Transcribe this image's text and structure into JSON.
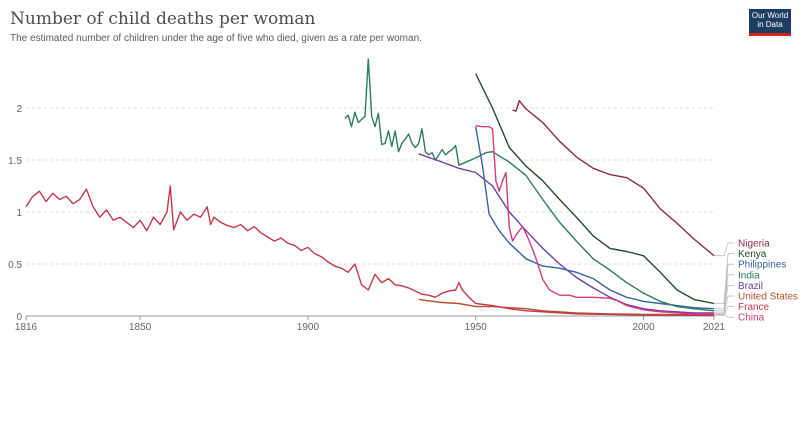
{
  "header": {
    "title": "Number of child deaths per woman",
    "subtitle": "The estimated number of children under the age of five who died, given as a rate per woman.",
    "logo_line1": "Our World",
    "logo_line2": "in Data"
  },
  "chart_data": {
    "type": "line",
    "title": "Number of child deaths per woman",
    "subtitle": "The estimated number of children under the age of five who died, given as a rate per woman.",
    "xlabel": "",
    "ylabel": "",
    "xlim": [
      1816,
      2021
    ],
    "ylim": [
      0,
      2.5
    ],
    "x_ticks": [
      1816,
      1850,
      1900,
      1950,
      2000,
      2021
    ],
    "y_ticks": [
      0,
      0.5,
      1,
      1.5,
      2
    ],
    "grid": true,
    "legend": "right",
    "series": [
      {
        "name": "Nigeria",
        "color": "#8b2c44",
        "x": [
          1961,
          1962,
          1963,
          1964,
          1965,
          1970,
          1975,
          1980,
          1985,
          1990,
          1995,
          2000,
          2005,
          2010,
          2015,
          2021
        ],
        "y": [
          1.98,
          1.97,
          2.07,
          2.03,
          1.99,
          1.86,
          1.68,
          1.53,
          1.42,
          1.36,
          1.33,
          1.23,
          1.03,
          0.89,
          0.74,
          0.58
        ]
      },
      {
        "name": "Kenya",
        "color": "#1f4d2e",
        "x": [
          1950,
          1955,
          1960,
          1965,
          1970,
          1975,
          1980,
          1985,
          1990,
          1995,
          2000,
          2005,
          2010,
          2015,
          2021
        ],
        "y": [
          2.33,
          2.0,
          1.62,
          1.44,
          1.3,
          1.12,
          0.95,
          0.77,
          0.65,
          0.62,
          0.58,
          0.42,
          0.25,
          0.16,
          0.12
        ]
      },
      {
        "name": "Philippines",
        "color": "#3465a4",
        "x": [
          1950,
          1952,
          1954,
          1957,
          1960,
          1965,
          1970,
          1975,
          1980,
          1985,
          1990,
          1995,
          2000,
          2005,
          2010,
          2015,
          2021
        ],
        "y": [
          1.82,
          1.45,
          0.98,
          0.82,
          0.7,
          0.55,
          0.48,
          0.46,
          0.42,
          0.36,
          0.25,
          0.18,
          0.14,
          0.12,
          0.1,
          0.08,
          0.07
        ]
      },
      {
        "name": "India",
        "color": "#2e7d5b",
        "x": [
          1911,
          1912,
          1913,
          1914,
          1915,
          1916,
          1917,
          1918,
          1919,
          1920,
          1921,
          1922,
          1923,
          1924,
          1925,
          1926,
          1927,
          1928,
          1929,
          1930,
          1931,
          1932,
          1933,
          1934,
          1935,
          1936,
          1937,
          1938,
          1939,
          1940,
          1941,
          1942,
          1943,
          1944,
          1945,
          1950,
          1953,
          1955,
          1960,
          1965,
          1970,
          1975,
          1980,
          1985,
          1990,
          1995,
          2000,
          2005,
          2010,
          2015,
          2021
        ],
        "y": [
          1.9,
          1.93,
          1.82,
          1.96,
          1.86,
          1.89,
          1.92,
          2.47,
          1.92,
          1.82,
          1.95,
          1.65,
          1.66,
          1.78,
          1.63,
          1.78,
          1.58,
          1.66,
          1.7,
          1.75,
          1.66,
          1.62,
          1.66,
          1.8,
          1.58,
          1.55,
          1.57,
          1.5,
          1.55,
          1.6,
          1.55,
          1.58,
          1.6,
          1.64,
          1.45,
          1.52,
          1.57,
          1.58,
          1.48,
          1.35,
          1.12,
          0.9,
          0.72,
          0.55,
          0.44,
          0.32,
          0.22,
          0.14,
          0.09,
          0.07,
          0.05
        ]
      },
      {
        "name": "Brazil",
        "color": "#6f3fa8",
        "x": [
          1933,
          1940,
          1945,
          1950,
          1955,
          1960,
          1965,
          1970,
          1975,
          1980,
          1985,
          1990,
          1995,
          2000,
          2005,
          2010,
          2015,
          2021
        ],
        "y": [
          1.56,
          1.48,
          1.42,
          1.38,
          1.25,
          1.0,
          0.82,
          0.65,
          0.5,
          0.37,
          0.27,
          0.18,
          0.11,
          0.07,
          0.05,
          0.04,
          0.03,
          0.03
        ]
      },
      {
        "name": "United States",
        "color": "#b5502b",
        "x": [
          1933,
          1935,
          1940,
          1945,
          1950,
          1955,
          1960,
          1965,
          1970,
          1975,
          1980,
          1985,
          1990,
          1995,
          2000,
          2005,
          2010,
          2015,
          2021
        ],
        "y": [
          0.16,
          0.15,
          0.13,
          0.12,
          0.09,
          0.09,
          0.08,
          0.07,
          0.05,
          0.04,
          0.03,
          0.025,
          0.02,
          0.018,
          0.015,
          0.014,
          0.013,
          0.012,
          0.011
        ]
      },
      {
        "name": "France",
        "color": "#c4384f",
        "x": [
          1816,
          1818,
          1820,
          1822,
          1824,
          1826,
          1828,
          1830,
          1832,
          1834,
          1836,
          1838,
          1840,
          1842,
          1844,
          1846,
          1848,
          1850,
          1852,
          1854,
          1856,
          1858,
          1859,
          1860,
          1862,
          1864,
          1866,
          1868,
          1870,
          1871,
          1872,
          1874,
          1876,
          1878,
          1880,
          1882,
          1884,
          1886,
          1888,
          1890,
          1892,
          1894,
          1896,
          1898,
          1900,
          1902,
          1904,
          1906,
          1908,
          1910,
          1912,
          1914,
          1916,
          1918,
          1920,
          1922,
          1924,
          1926,
          1928,
          1930,
          1932,
          1934,
          1936,
          1938,
          1940,
          1942,
          1944,
          1945,
          1946,
          1948,
          1950,
          1955,
          1960,
          1965,
          1970,
          1980,
          1990,
          2000,
          2010,
          2021
        ],
        "y": [
          1.05,
          1.15,
          1.2,
          1.1,
          1.18,
          1.12,
          1.15,
          1.08,
          1.12,
          1.22,
          1.05,
          0.95,
          1.02,
          0.92,
          0.95,
          0.9,
          0.85,
          0.92,
          0.82,
          0.95,
          0.88,
          1.0,
          1.25,
          0.83,
          1.0,
          0.92,
          0.98,
          0.95,
          1.05,
          0.88,
          0.95,
          0.9,
          0.87,
          0.85,
          0.88,
          0.82,
          0.86,
          0.8,
          0.76,
          0.72,
          0.75,
          0.7,
          0.68,
          0.63,
          0.66,
          0.6,
          0.57,
          0.52,
          0.48,
          0.46,
          0.42,
          0.5,
          0.3,
          0.25,
          0.4,
          0.32,
          0.36,
          0.3,
          0.29,
          0.27,
          0.24,
          0.21,
          0.2,
          0.18,
          0.22,
          0.24,
          0.25,
          0.32,
          0.25,
          0.18,
          0.12,
          0.1,
          0.07,
          0.05,
          0.04,
          0.02,
          0.015,
          0.01,
          0.008,
          0.005
        ]
      },
      {
        "name": "China",
        "color": "#d63a7a",
        "x": [
          1950,
          1952,
          1954,
          1955,
          1956,
          1957,
          1958,
          1959,
          1960,
          1961,
          1962,
          1963,
          1964,
          1966,
          1968,
          1970,
          1972,
          1975,
          1978,
          1980,
          1985,
          1990,
          1992,
          1995,
          2000,
          2005,
          2010,
          2015,
          2021
        ],
        "y": [
          1.83,
          1.82,
          1.82,
          1.8,
          1.3,
          1.2,
          1.3,
          1.38,
          0.85,
          0.72,
          0.78,
          0.82,
          0.86,
          0.72,
          0.55,
          0.35,
          0.25,
          0.2,
          0.2,
          0.18,
          0.18,
          0.17,
          0.15,
          0.1,
          0.06,
          0.04,
          0.03,
          0.02,
          0.02
        ]
      }
    ]
  }
}
